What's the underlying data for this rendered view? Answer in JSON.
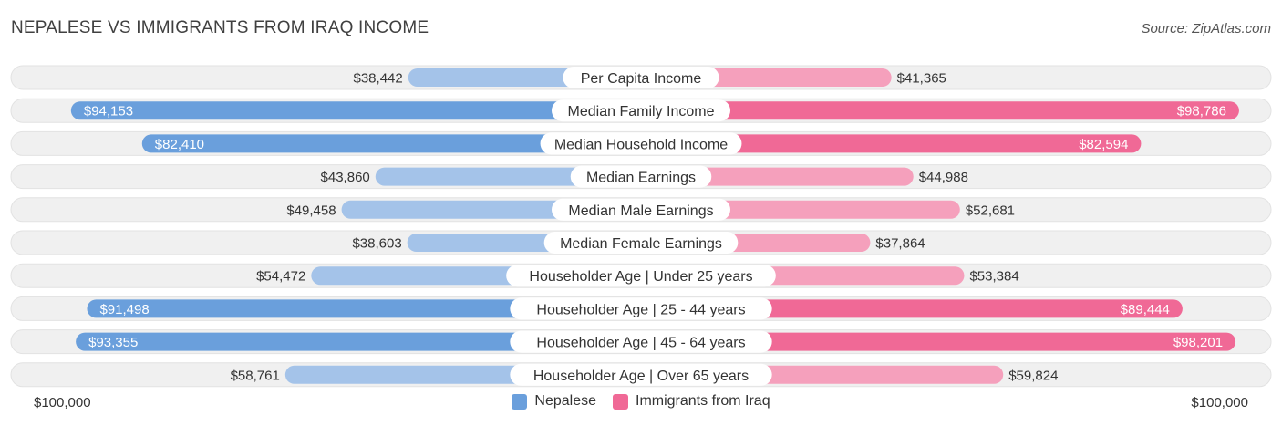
{
  "title": "NEPALESE VS IMMIGRANTS FROM IRAQ INCOME",
  "source": "Source: ZipAtlas.com",
  "axis_left_label": "$100,000",
  "axis_right_label": "$100,000",
  "colors": {
    "nepalese_strong": "#6a9fdc",
    "nepalese_light": "#a4c3e9",
    "iraq_strong": "#f06996",
    "iraq_light": "#f5a0bc",
    "row_bg": "#f0f0f0"
  },
  "chart_data": {
    "type": "bar",
    "orientation": "horizontal-diverging",
    "title": "NEPALESE VS IMMIGRANTS FROM IRAQ INCOME",
    "xlim": [
      0,
      100000
    ],
    "categories": [
      "Per Capita Income",
      "Median Family Income",
      "Median Household Income",
      "Median Earnings",
      "Median Male Earnings",
      "Median Female Earnings",
      "Householder Age | Under 25 years",
      "Householder Age | 25 - 44 years",
      "Householder Age | 45 - 64 years",
      "Householder Age | Over 65 years"
    ],
    "series": [
      {
        "name": "Nepalese",
        "values": [
          38442,
          94153,
          82410,
          43860,
          49458,
          38603,
          54472,
          91498,
          93355,
          58761
        ],
        "labels": [
          "$38,442",
          "$94,153",
          "$82,410",
          "$43,860",
          "$49,458",
          "$38,603",
          "$54,472",
          "$91,498",
          "$93,355",
          "$58,761"
        ]
      },
      {
        "name": "Immigrants from Iraq",
        "values": [
          41365,
          98786,
          82594,
          44988,
          52681,
          37864,
          53384,
          89444,
          98201,
          59824
        ],
        "labels": [
          "$41,365",
          "$98,786",
          "$82,594",
          "$44,988",
          "$52,681",
          "$37,864",
          "$53,384",
          "$89,444",
          "$98,201",
          "$59,824"
        ]
      }
    ],
    "legend": [
      "Nepalese",
      "Immigrants from Iraq"
    ]
  }
}
